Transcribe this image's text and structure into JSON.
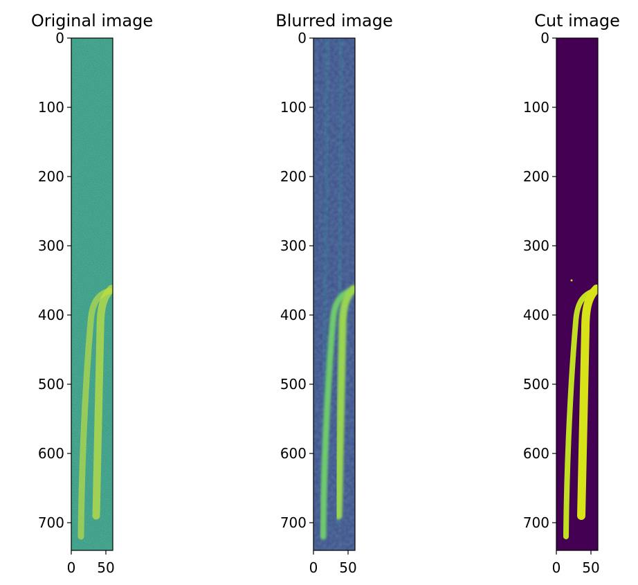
{
  "chart_data": [
    {
      "type": "image",
      "title": "Original image",
      "xlim": [
        0,
        60
      ],
      "ylim": [
        0,
        740
      ],
      "y_inverted": true,
      "xticks": [
        0,
        50
      ],
      "yticks": [
        0,
        100,
        200,
        300,
        400,
        500,
        600,
        700
      ]
    },
    {
      "type": "image",
      "title": "Blurred image",
      "xlim": [
        0,
        60
      ],
      "ylim": [
        0,
        740
      ],
      "y_inverted": true,
      "xticks": [
        0,
        50
      ],
      "yticks": [
        0,
        100,
        200,
        300,
        400,
        500,
        600,
        700
      ]
    },
    {
      "type": "image",
      "title": "Cut image",
      "xlim": [
        0,
        60
      ],
      "ylim": [
        0,
        740
      ],
      "y_inverted": true,
      "xticks": [
        0,
        50
      ],
      "yticks": [
        0,
        100,
        200,
        300,
        400,
        500,
        600,
        700
      ]
    }
  ]
}
